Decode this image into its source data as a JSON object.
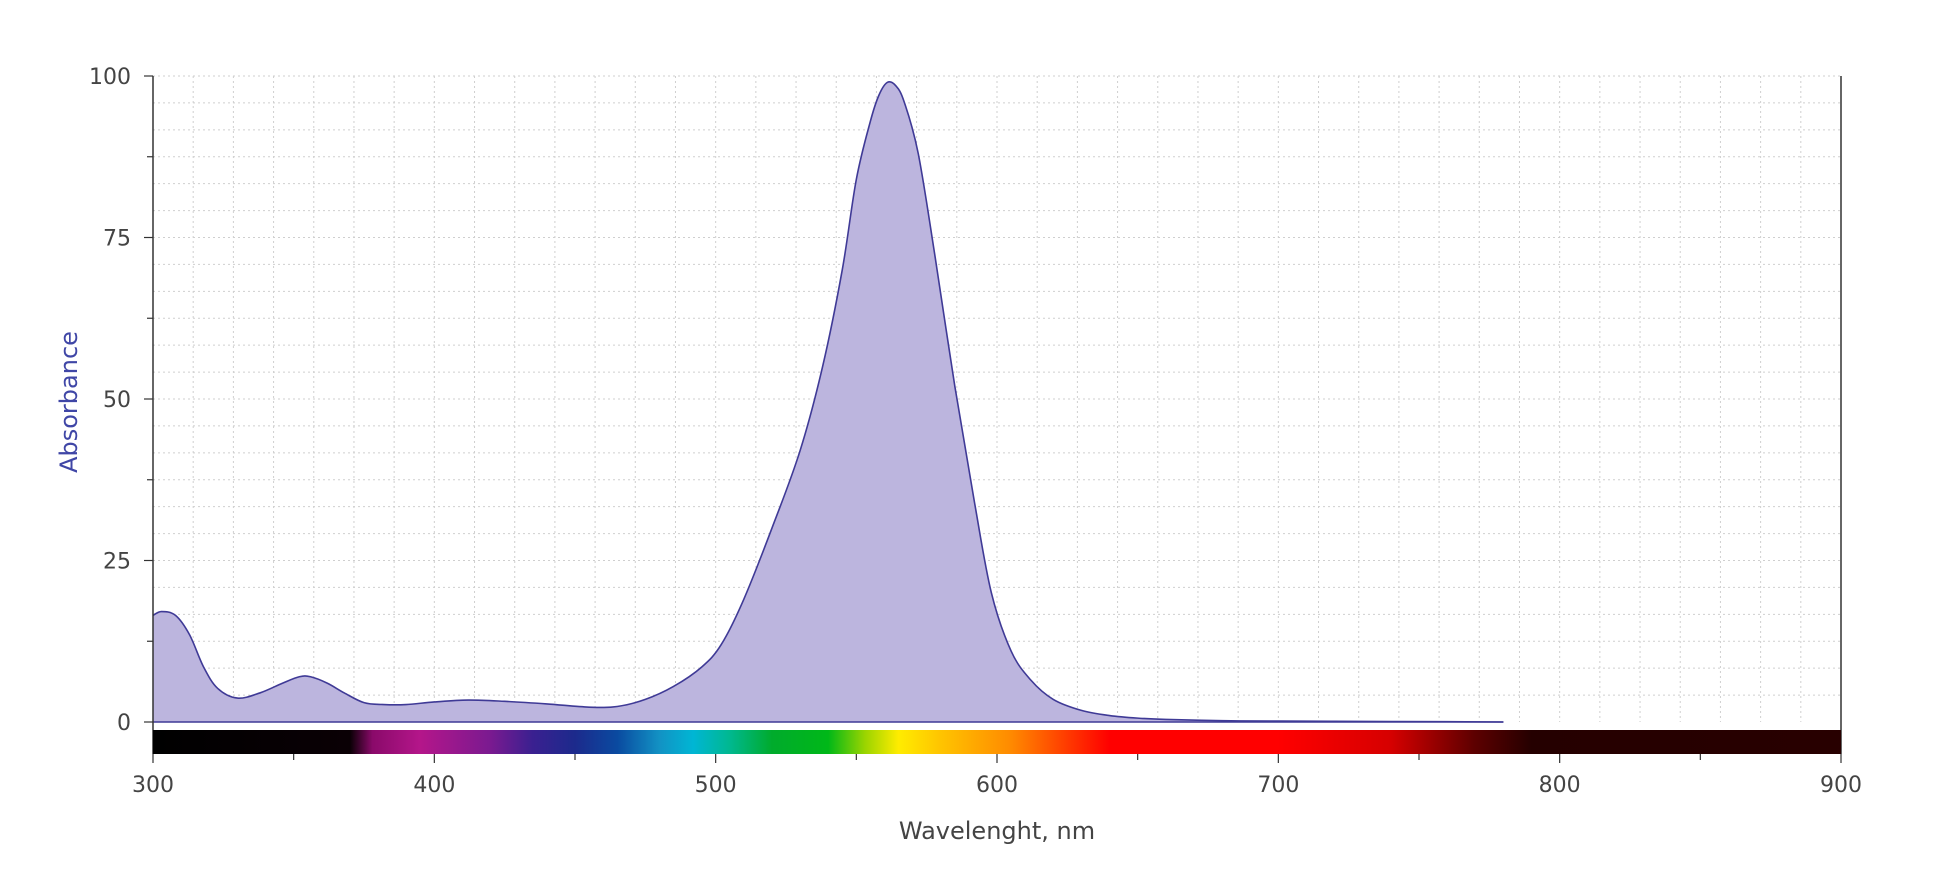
{
  "chart_data": {
    "type": "area",
    "title": "",
    "xlabel": "Wavelenght, nm",
    "ylabel": "Absorbance",
    "xlim": [
      300,
      900
    ],
    "ylim": [
      0,
      100
    ],
    "x_ticks": [
      300,
      400,
      500,
      600,
      700,
      800,
      900
    ],
    "y_ticks": [
      0,
      25,
      50,
      75,
      100
    ],
    "grid": true,
    "legend": "none",
    "spectrum_bar": true,
    "colors": {
      "fill": "#bcb5de",
      "line": "#3f3a96",
      "grid": "#cfcfcf",
      "ylabel": "#3f46a6"
    },
    "series": [
      {
        "x": [
          300,
          303,
          308,
          313,
          318,
          323,
          330,
          338,
          346,
          352,
          356,
          362,
          368,
          375,
          382,
          390,
          400,
          412,
          425,
          440,
          455,
          465,
          475,
          485,
          495,
          502,
          510,
          520,
          530,
          538,
          545,
          550,
          555,
          558,
          561,
          564,
          567,
          572,
          578,
          585,
          592,
          598,
          605,
          612,
          620,
          630,
          640,
          650,
          660,
          680,
          700,
          730,
          760,
          780
        ],
        "y": [
          16.5,
          17.1,
          16.5,
          13.5,
          8.5,
          5.2,
          3.7,
          4.5,
          6.0,
          7.0,
          7.0,
          6.0,
          4.5,
          3.0,
          2.7,
          2.7,
          3.1,
          3.4,
          3.2,
          2.8,
          2.3,
          2.4,
          3.5,
          5.5,
          8.5,
          12.0,
          19.0,
          30.0,
          42.0,
          55.0,
          70.0,
          84.0,
          93.0,
          97.0,
          99.0,
          98.5,
          96.0,
          88.0,
          72.0,
          52.0,
          34.0,
          20.0,
          11.0,
          6.5,
          3.5,
          1.8,
          1.0,
          0.6,
          0.4,
          0.2,
          0.15,
          0.08,
          0.05,
          0.0
        ]
      }
    ]
  }
}
